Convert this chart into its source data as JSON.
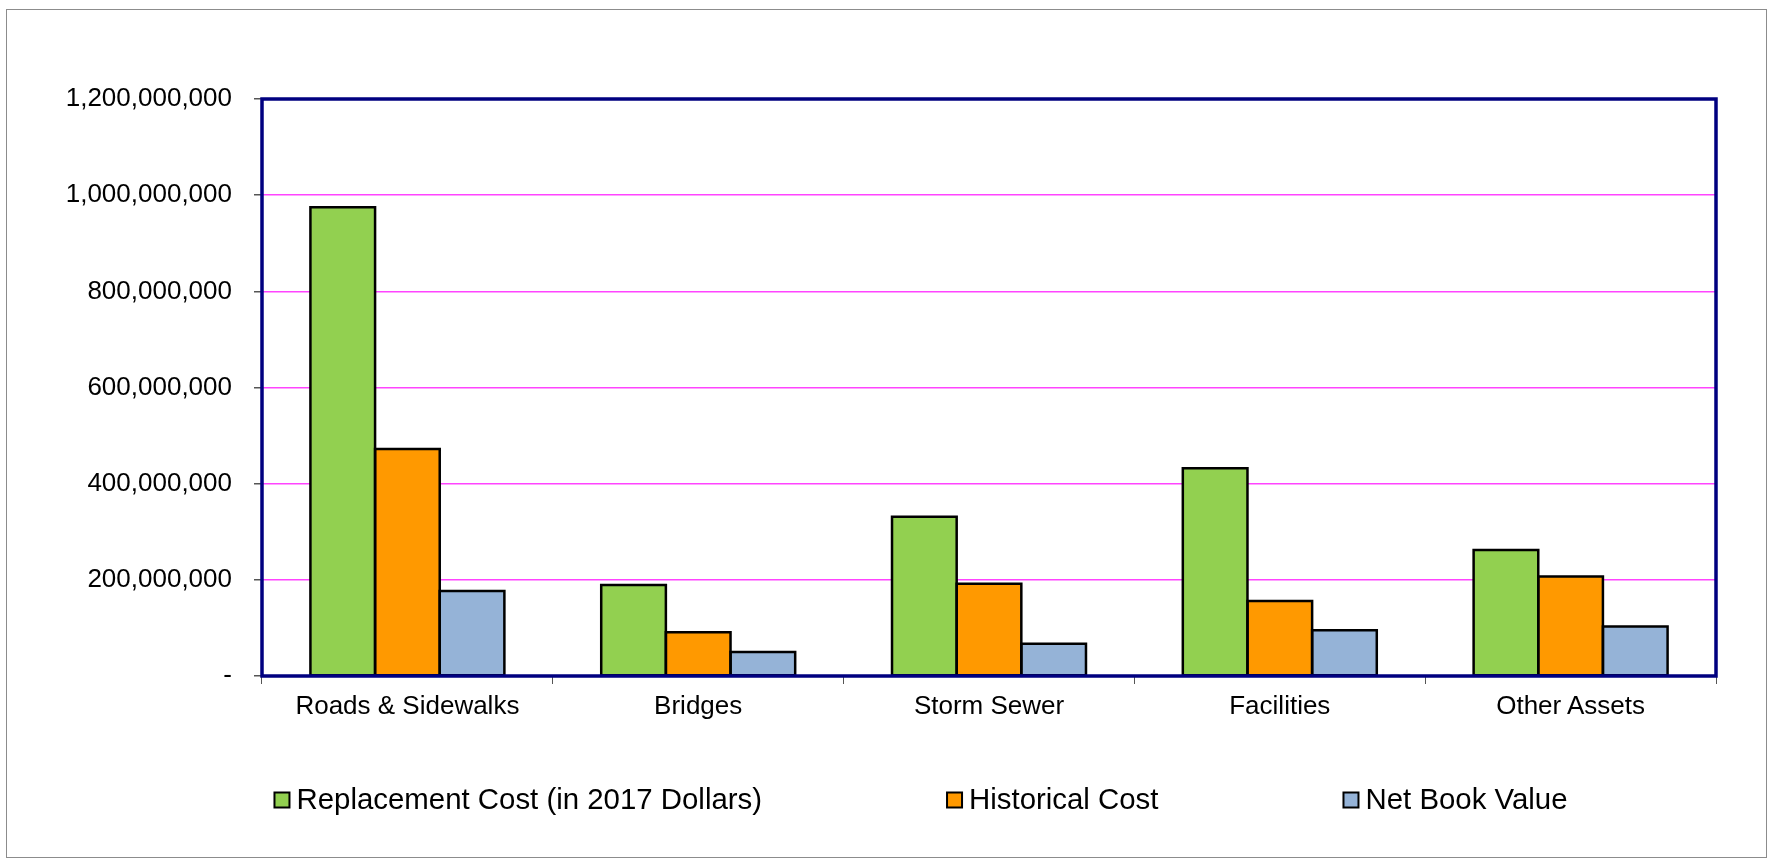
{
  "chart_data": {
    "type": "bar",
    "categories": [
      "Roads & Sidewalks",
      "Bridges",
      "Storm Sewer",
      "Facilities",
      "Other Assets"
    ],
    "series": [
      {
        "name": "Replacement Cost (in 2017 Dollars)",
        "color": "#92d050",
        "values": [
          975000000,
          189000000,
          331000000,
          432000000,
          262000000
        ]
      },
      {
        "name": "Historical Cost",
        "color": "#ff9900",
        "values": [
          472000000,
          91000000,
          192000000,
          156000000,
          207000000
        ]
      },
      {
        "name": "Net Book Value",
        "color": "#95b3d7",
        "values": [
          177000000,
          50000000,
          67000000,
          95000000,
          103000000
        ]
      }
    ],
    "ylim": [
      0,
      1200000000
    ],
    "yticks": [
      {
        "value": 0,
        "label": "-"
      },
      {
        "value": 200000000,
        "label": "200,000,000"
      },
      {
        "value": 400000000,
        "label": "400,000,000"
      },
      {
        "value": 600000000,
        "label": "600,000,000"
      },
      {
        "value": 800000000,
        "label": "800,000,000"
      },
      {
        "value": 1000000000,
        "label": "1,000,000,000"
      },
      {
        "value": 1200000000,
        "label": "1,200,000,000"
      }
    ],
    "grid": "y",
    "legend": "bottom"
  }
}
